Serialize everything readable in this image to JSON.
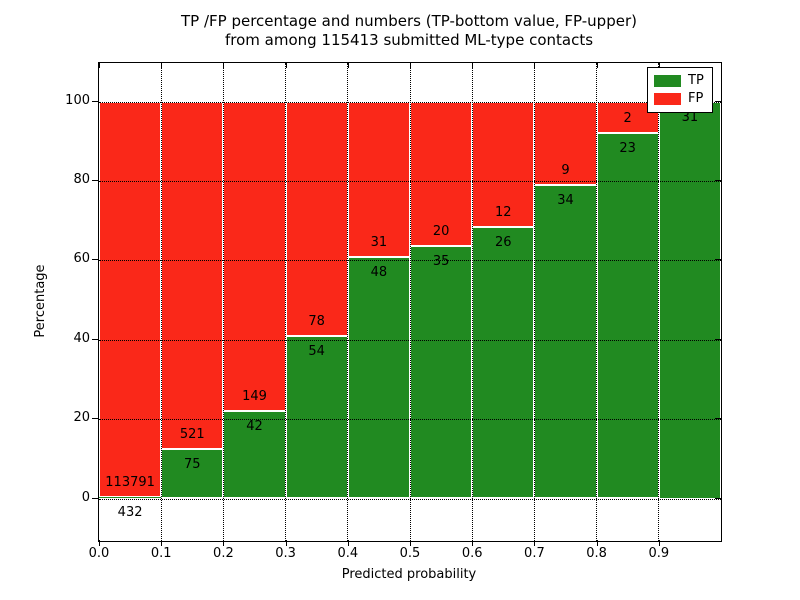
{
  "title": {
    "line1": "TP /FP percentage and numbers (TP-bottom value, FP-upper)",
    "line2": "from among 115413 submitted ML-type contacts"
  },
  "chart_data": {
    "type": "bar",
    "stacked": true,
    "title": "TP /FP percentage and numbers (TP-bottom value, FP-upper) from among 115413 submitted ML-type contacts",
    "xlabel": "Predicted probability",
    "ylabel": "Percentage",
    "bins": [
      "0.0-0.1",
      "0.1-0.2",
      "0.2-0.3",
      "0.3-0.4",
      "0.4-0.5",
      "0.5-0.6",
      "0.6-0.7",
      "0.7-0.8",
      "0.8-0.9",
      "0.9-1.0"
    ],
    "bin_width": 0.1,
    "series": [
      {
        "name": "TP",
        "color": "#218a21",
        "counts": [
          432,
          75,
          42,
          54,
          48,
          35,
          26,
          34,
          23,
          31
        ]
      },
      {
        "name": "FP",
        "color": "#fa2819",
        "counts": [
          113791,
          521,
          149,
          78,
          31,
          20,
          12,
          9,
          2,
          null
        ]
      }
    ],
    "tp_percent": [
      0.38,
      12.58,
      21.99,
      40.91,
      60.76,
      63.64,
      68.42,
      79.07,
      92.0,
      100.0
    ],
    "x_ticks": [
      "0.0",
      "0.1",
      "0.2",
      "0.3",
      "0.4",
      "0.5",
      "0.6",
      "0.7",
      "0.8",
      "0.9"
    ],
    "y_ticks": [
      0,
      20,
      40,
      60,
      80,
      100
    ],
    "xlim": [
      0.0,
      1.0
    ],
    "ylim": [
      -11,
      110
    ],
    "grid": true,
    "legend": {
      "position": "upper right",
      "entries": [
        {
          "label": "TP",
          "color": "#218a21"
        },
        {
          "label": "FP",
          "color": "#fa2819"
        }
      ]
    }
  }
}
